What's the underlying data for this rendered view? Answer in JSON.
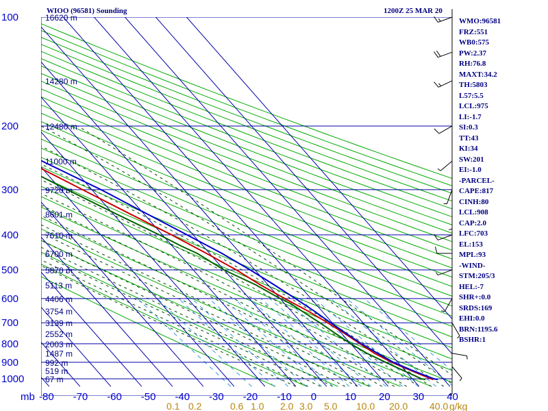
{
  "header": {
    "station": "WIOO (96581) Sounding",
    "time": "1200Z 25 MAR 20"
  },
  "chart_data": {
    "type": "line",
    "xlabel": "",
    "ylabel": "mb",
    "xlim": [
      -80,
      40
    ],
    "pressure_ticks": [
      "100",
      "200",
      "300",
      "400",
      "500",
      "600",
      "700",
      "800",
      "900",
      "1000"
    ],
    "temp_ticks": [
      "-80",
      "-70",
      "-60",
      "-50",
      "-40",
      "-30",
      "-20",
      "-10",
      "0",
      "10",
      "20",
      "30",
      "40"
    ],
    "mixing_ratio_ticks": [
      "0.1",
      "0.2",
      "0.6",
      "1.0",
      "2.0",
      "3.0",
      "5.0",
      "10.0",
      "20.0",
      "40.0"
    ],
    "mixing_unit": "g/kg",
    "height_labels": [
      {
        "p": 100,
        "h": "16620 m"
      },
      {
        "p": 150,
        "h": "14280 m"
      },
      {
        "p": 200,
        "h": "12480 m"
      },
      {
        "p": 250,
        "h": "11000 m"
      },
      {
        "p": 300,
        "h": "9720 m"
      },
      {
        "p": 350,
        "h": "8601 m"
      },
      {
        "p": 400,
        "h": "7610 m"
      },
      {
        "p": 450,
        "h": "6700 m"
      },
      {
        "p": 500,
        "h": "5870 m"
      },
      {
        "p": 550,
        "h": "5113 m"
      },
      {
        "p": 600,
        "h": "4406 m"
      },
      {
        "p": 650,
        "h": "3754 m"
      },
      {
        "p": 700,
        "h": "3139 m"
      },
      {
        "p": 750,
        "h": "2552 m"
      },
      {
        "p": 800,
        "h": "2003 m"
      },
      {
        "p": 850,
        "h": "1487 m"
      },
      {
        "p": 900,
        "h": "992 m"
      },
      {
        "p": 950,
        "h": "519 m"
      },
      {
        "p": 1000,
        "h": "67 m"
      }
    ],
    "series": [
      {
        "name": "Temperature",
        "color": "#cc0000",
        "points": [
          [
            1005,
            26.5
          ],
          [
            1000,
            26
          ],
          [
            950,
            22
          ],
          [
            900,
            18
          ],
          [
            850,
            15
          ],
          [
            800,
            13
          ],
          [
            750,
            11
          ],
          [
            700,
            8.5
          ],
          [
            650,
            5.5
          ],
          [
            600,
            1.5
          ],
          [
            550,
            -2.5
          ],
          [
            500,
            -6
          ],
          [
            450,
            -11
          ],
          [
            400,
            -17
          ],
          [
            350,
            -24.5
          ],
          [
            300,
            -33
          ],
          [
            250,
            -43
          ],
          [
            200,
            -55
          ],
          [
            150,
            -69
          ],
          [
            120,
            -76
          ],
          [
            100,
            -80.5
          ]
        ]
      },
      {
        "name": "Dewpoint",
        "color": "#006400",
        "points": [
          [
            1005,
            24
          ],
          [
            1000,
            23
          ],
          [
            950,
            19.5
          ],
          [
            900,
            16
          ],
          [
            850,
            12.5
          ],
          [
            800,
            10
          ],
          [
            750,
            8
          ],
          [
            700,
            6
          ],
          [
            680,
            5
          ],
          [
            660,
            4
          ],
          [
            650,
            3.5
          ],
          [
            620,
            2
          ],
          [
            600,
            0
          ],
          [
            550,
            -4
          ],
          [
            500,
            -10
          ],
          [
            450,
            -14
          ],
          [
            430,
            -17
          ],
          [
            400,
            -21
          ],
          [
            350,
            -29
          ],
          [
            300,
            -38
          ],
          [
            250,
            -48
          ]
        ]
      },
      {
        "name": "Parcel",
        "color": "#0000cc",
        "points": [
          [
            1005,
            28
          ],
          [
            1000,
            27
          ],
          [
            950,
            22.5
          ],
          [
            900,
            18.5
          ],
          [
            850,
            16
          ],
          [
            800,
            13.5
          ],
          [
            750,
            11.5
          ],
          [
            700,
            9.5
          ],
          [
            650,
            7.5
          ],
          [
            600,
            5
          ],
          [
            550,
            2
          ],
          [
            500,
            -1.5
          ],
          [
            450,
            -6
          ],
          [
            400,
            -12
          ],
          [
            350,
            -19
          ],
          [
            300,
            -27
          ],
          [
            250,
            -38
          ],
          [
            200,
            -51
          ],
          [
            150,
            -67
          ],
          [
            120,
            -77
          ],
          [
            100,
            -84
          ]
        ]
      }
    ],
    "wind_barbs": [
      {
        "p": 100,
        "dir": 250,
        "spd": 15
      },
      {
        "p": 125,
        "dir": 250,
        "spd": 20
      },
      {
        "p": 150,
        "dir": 245,
        "spd": 15
      },
      {
        "p": 200,
        "dir": 240,
        "spd": 10
      },
      {
        "p": 250,
        "dir": 230,
        "spd": 5
      },
      {
        "p": 300,
        "dir": 200,
        "spd": 5
      },
      {
        "p": 350,
        "dir": 180,
        "spd": 5
      },
      {
        "p": 400,
        "dir": 250,
        "spd": 10
      },
      {
        "p": 450,
        "dir": 270,
        "spd": 10
      },
      {
        "p": 500,
        "dir": 250,
        "spd": 5
      },
      {
        "p": 600,
        "dir": 210,
        "spd": 5
      },
      {
        "p": 700,
        "dir": 150,
        "spd": 5
      },
      {
        "p": 850,
        "dir": 100,
        "spd": 5
      },
      {
        "p": 925,
        "dir": 140,
        "spd": 5
      },
      {
        "p": 1000,
        "dir": 180,
        "spd": 5
      }
    ]
  },
  "indices": [
    "WMO:96581",
    "FRZ:551",
    "WB0:575",
    "PW:2.37",
    "RH:76.8",
    "MAXT:34.2",
    "TH:5803",
    "L57:5.5",
    "LCL:975",
    "LI:-1.7",
    "SI:0.3",
    "TT:43",
    "KI:34",
    "SW:201",
    "EI:-1.0",
    "-PARCEL-",
    "CAPE:817",
    "CINH:80",
    "LCL:908",
    "CAP:2.0",
    "LFC:703",
    "EL:153",
    "MPL:93",
    "-WIND-",
    "STM:205/3",
    "HEL:-7",
    "SHR+:0.0",
    "SRDS:169",
    "EHI:0.0",
    "BRN:1195.6",
    "BSHR:1"
  ],
  "colors": {
    "isobar": "#0000aa",
    "isotherm": "#0000aa",
    "dry_adiabat": "#00aa00",
    "moist_adiabat": "#004400",
    "mixing_ratio": "#3399dd"
  }
}
